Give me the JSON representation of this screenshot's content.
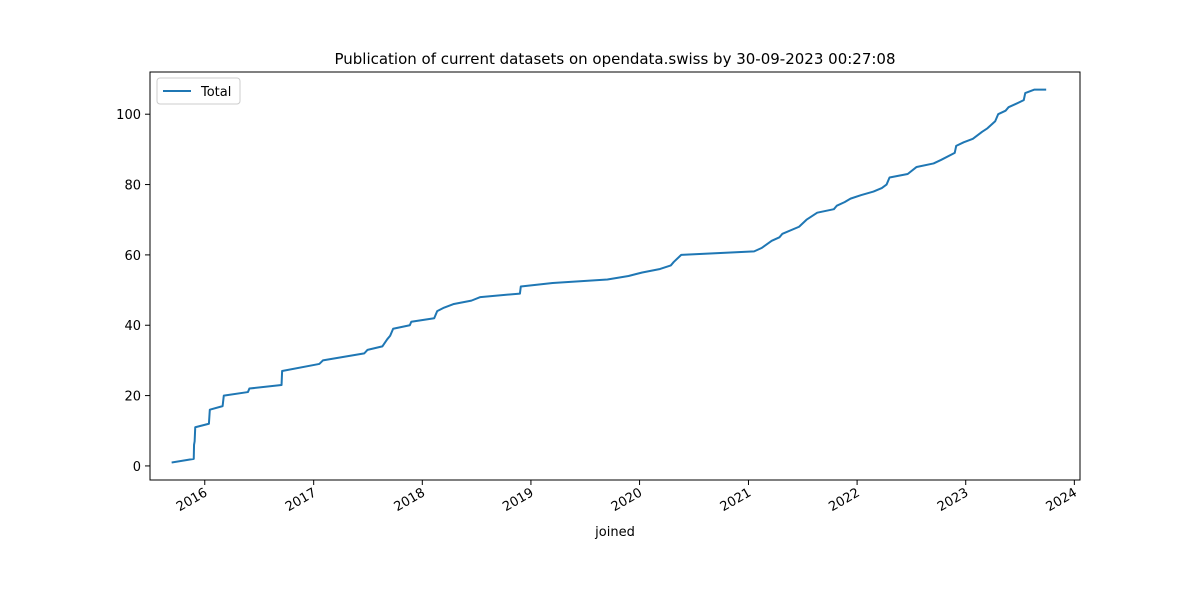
{
  "chart_data": {
    "type": "line",
    "title": "Publication of current datasets on opendata.swiss by 30-09-2023 00:27:08",
    "xlabel": "joined",
    "ylabel": "",
    "x_axis_type": "date",
    "xlim": [
      "2015-07-01",
      "2024-01-20"
    ],
    "ylim": [
      -4,
      112
    ],
    "x_ticks": [
      "2016-01-01",
      "2017-01-01",
      "2018-01-01",
      "2019-01-01",
      "2020-01-01",
      "2021-01-01",
      "2022-01-01",
      "2023-01-01",
      "2024-01-01"
    ],
    "x_tick_labels": [
      "2016",
      "2017",
      "2018",
      "2019",
      "2020",
      "2021",
      "2022",
      "2023",
      "2024"
    ],
    "y_ticks": [
      0,
      20,
      40,
      60,
      80,
      100
    ],
    "y_tick_labels": [
      "0",
      "20",
      "40",
      "60",
      "80",
      "100"
    ],
    "legend": {
      "position": "upper-left",
      "entries": [
        "Total"
      ]
    },
    "grid": false,
    "series": [
      {
        "name": "Total",
        "color": "#1f77b4",
        "points": [
          [
            "2015-09-15",
            1
          ],
          [
            "2015-11-25",
            2
          ],
          [
            "2015-11-26",
            6
          ],
          [
            "2015-11-28",
            7
          ],
          [
            "2015-11-30",
            11
          ],
          [
            "2016-01-15",
            12
          ],
          [
            "2016-01-18",
            16
          ],
          [
            "2016-03-01",
            17
          ],
          [
            "2016-03-05",
            20
          ],
          [
            "2016-05-25",
            21
          ],
          [
            "2016-05-30",
            22
          ],
          [
            "2016-09-15",
            23
          ],
          [
            "2016-09-17",
            27
          ],
          [
            "2017-01-20",
            29
          ],
          [
            "2017-02-01",
            30
          ],
          [
            "2017-06-20",
            32
          ],
          [
            "2017-07-01",
            33
          ],
          [
            "2017-08-20",
            34
          ],
          [
            "2017-09-05",
            36
          ],
          [
            "2017-09-15",
            37
          ],
          [
            "2017-09-25",
            39
          ],
          [
            "2017-11-20",
            40
          ],
          [
            "2017-11-25",
            41
          ],
          [
            "2018-02-10",
            42
          ],
          [
            "2018-02-20",
            44
          ],
          [
            "2018-03-15",
            45
          ],
          [
            "2018-04-15",
            46
          ],
          [
            "2018-06-15",
            47
          ],
          [
            "2018-07-15",
            48
          ],
          [
            "2018-11-25",
            49
          ],
          [
            "2018-11-28",
            51
          ],
          [
            "2019-03-15",
            52
          ],
          [
            "2019-09-15",
            53
          ],
          [
            "2019-11-25",
            54
          ],
          [
            "2020-01-10",
            55
          ],
          [
            "2020-03-10",
            56
          ],
          [
            "2020-04-15",
            57
          ],
          [
            "2020-04-25",
            58
          ],
          [
            "2020-05-20",
            60
          ],
          [
            "2021-01-20",
            61
          ],
          [
            "2021-02-15",
            62
          ],
          [
            "2021-03-20",
            64
          ],
          [
            "2021-04-15",
            65
          ],
          [
            "2021-04-25",
            66
          ],
          [
            "2021-06-20",
            68
          ],
          [
            "2021-07-15",
            70
          ],
          [
            "2021-08-20",
            72
          ],
          [
            "2021-10-15",
            73
          ],
          [
            "2021-10-25",
            74
          ],
          [
            "2021-11-20",
            75
          ],
          [
            "2021-12-10",
            76
          ],
          [
            "2022-01-15",
            77
          ],
          [
            "2022-02-25",
            78
          ],
          [
            "2022-03-25",
            79
          ],
          [
            "2022-04-10",
            80
          ],
          [
            "2022-04-20",
            82
          ],
          [
            "2022-06-20",
            83
          ],
          [
            "2022-07-20",
            85
          ],
          [
            "2022-09-15",
            86
          ],
          [
            "2022-10-10",
            87
          ],
          [
            "2022-11-25",
            89
          ],
          [
            "2022-11-30",
            91
          ],
          [
            "2022-12-25",
            92
          ],
          [
            "2023-01-25",
            93
          ],
          [
            "2023-02-25",
            95
          ],
          [
            "2023-03-15",
            96
          ],
          [
            "2023-04-10",
            98
          ],
          [
            "2023-04-15",
            99
          ],
          [
            "2023-04-20",
            100
          ],
          [
            "2023-05-15",
            101
          ],
          [
            "2023-05-25",
            102
          ],
          [
            "2023-06-20",
            103
          ],
          [
            "2023-07-15",
            104
          ],
          [
            "2023-07-20",
            106
          ],
          [
            "2023-08-20",
            107
          ],
          [
            "2023-09-25",
            107
          ]
        ]
      }
    ]
  }
}
